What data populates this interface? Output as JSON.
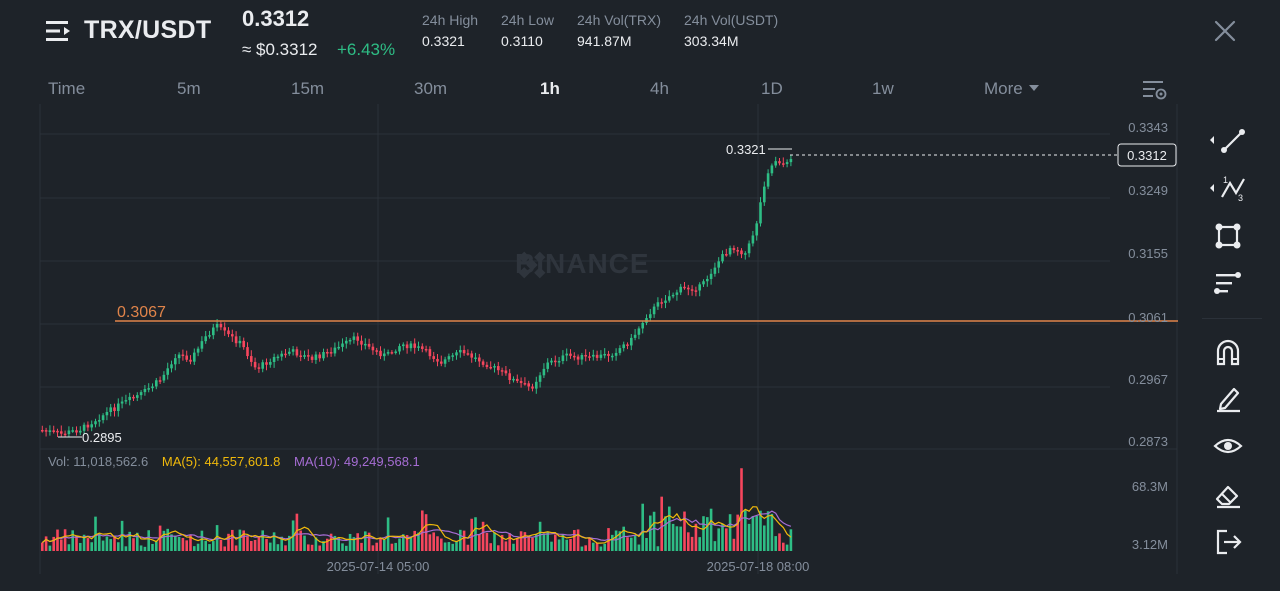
{
  "header": {
    "pair": "TRX/USDT",
    "last_price": "0.3312",
    "usd_price": "≈ $0.3312",
    "change": "+6.43%",
    "stats": [
      {
        "label": "24h High",
        "value": "0.3321"
      },
      {
        "label": "24h Low",
        "value": "0.3110"
      },
      {
        "label": "24h Vol(TRX)",
        "value": "941.87M"
      },
      {
        "label": "24h Vol(USDT)",
        "value": "303.34M"
      }
    ]
  },
  "tabs": [
    {
      "label": "Time"
    },
    {
      "label": "5m"
    },
    {
      "label": "15m"
    },
    {
      "label": "30m"
    },
    {
      "label": "1h",
      "active": true
    },
    {
      "label": "4h"
    },
    {
      "label": "1D"
    },
    {
      "label": "1w"
    },
    {
      "label": "More"
    }
  ],
  "watermark": "BINANCE",
  "chart": {
    "price_axis": [
      "0.3343",
      "0.3249",
      "0.3155",
      "0.3061",
      "0.2967",
      "0.2873"
    ],
    "current_price_label": "0.3312",
    "high_label": "0.3321",
    "low_label": "0.2895",
    "horizontal_line_label": "0.3067",
    "volume_axis": [
      "68.3M",
      "3.12M"
    ],
    "time_axis": [
      "2025-07-14 05:00",
      "2025-07-18 08:00"
    ]
  },
  "volume_legend": {
    "vol": "Vol: 11,018,562.6",
    "ma5": "MA(5): 44,557,601.8",
    "ma10": "MA(10): 49,249,568.1"
  },
  "colors": {
    "up": "#2ebd85",
    "down": "#f6465d",
    "line": "#e0844a",
    "ma5": "#f0b90b",
    "ma10": "#a66dd4"
  },
  "toolbar": [
    "trend-line-icon",
    "fib-retracement-icon",
    "shapes-icon",
    "indicators-icon",
    "magnet-icon",
    "pencil-icon",
    "eye-icon",
    "eraser-icon",
    "exit-icon"
  ]
}
